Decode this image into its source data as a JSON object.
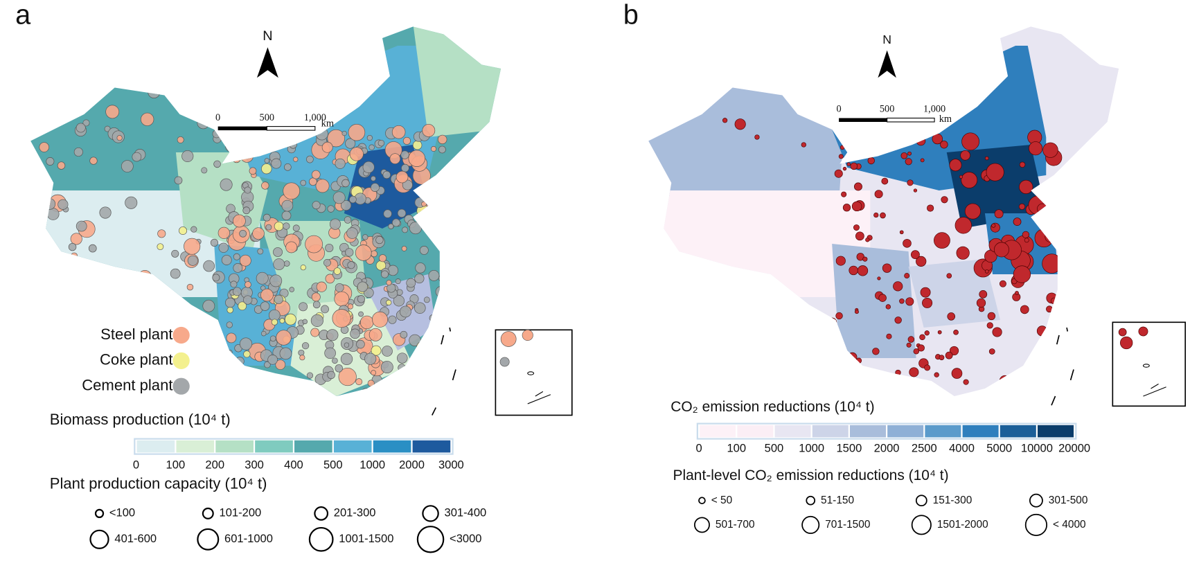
{
  "panel_a": {
    "label": "a",
    "north": "N",
    "scale_labels": [
      "0",
      "500",
      "1,000"
    ],
    "scale_unit": "km",
    "plant_legend": [
      {
        "name": "Steel plant",
        "color": "#f7a98b"
      },
      {
        "name": "Coke plant",
        "color": "#f3f08e"
      },
      {
        "name": "Cement plant",
        "color": "#a3a7aa"
      }
    ],
    "colorbar_title": "Biomass production (10⁴ t)",
    "colorbar_colors": [
      "#dcedf0",
      "#d9efd6",
      "#b5e0c5",
      "#7fcbbf",
      "#55a9ad",
      "#58b1d6",
      "#2a8fc4",
      "#1d5a9e"
    ],
    "colorbar_ticks": [
      "0",
      "100",
      "200",
      "300",
      "400",
      "500",
      "1000",
      "2000",
      "3000"
    ],
    "size_title": "Plant production capacity (10⁴ t)",
    "size_labels": [
      "<100",
      "101-200",
      "201-300",
      "301-400",
      "401-600",
      "601-1000",
      "1001-1500",
      "<3000"
    ]
  },
  "panel_b": {
    "label": "b",
    "north": "N",
    "scale_labels": [
      "0",
      "500",
      "1,000"
    ],
    "scale_unit": "km",
    "colorbar_title": "CO₂ emission reductions (10⁴ t)",
    "colorbar_colors": [
      "#fdf1f7",
      "#fbeef5",
      "#e8e6f2",
      "#cdd4e8",
      "#a9bddb",
      "#8fb0d6",
      "#5b9bcb",
      "#2f7fbd",
      "#1b5f99",
      "#0b3d6b"
    ],
    "colorbar_ticks": [
      "0",
      "100",
      "500",
      "1000",
      "1500",
      "2000",
      "2500",
      "4000",
      "5000",
      "10000",
      "20000"
    ],
    "size_title": "Plant-level CO₂ emission reductions (10⁴ t)",
    "size_labels": [
      "< 50",
      "51-150",
      "151-300",
      "301-500",
      "501-700",
      "701-1500",
      "1501-2000",
      "< 4000"
    ]
  }
}
